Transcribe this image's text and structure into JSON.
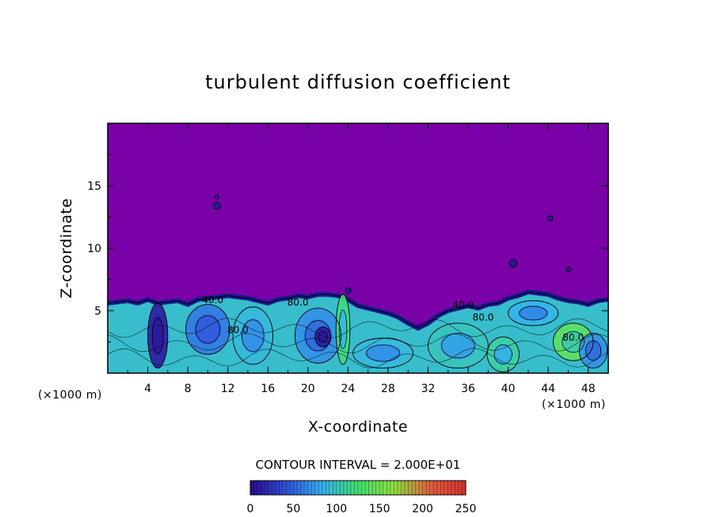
{
  "chart_data": {
    "type": "heatmap",
    "title": "turbulent diffusion coefficient",
    "xlabel": "X-coordinate",
    "ylabel": "Z-coordinate",
    "x_unit": "(×1000 m)",
    "x_unit_right": "(×1000 m)",
    "xlim": [
      0,
      50
    ],
    "ylim": [
      0,
      20
    ],
    "x_ticks": [
      4,
      8,
      12,
      16,
      20,
      24,
      28,
      32,
      36,
      40,
      44,
      48
    ],
    "y_ticks": [
      5,
      10,
      15
    ],
    "contour_interval_text": "CONTOUR INTERVAL = 2.000E+01",
    "colorbar": {
      "range": [
        0,
        250
      ],
      "ticks": [
        0,
        50,
        100,
        150,
        200,
        250
      ],
      "colors": [
        "#2a0a8c",
        "#3050d8",
        "#35b0f0",
        "#40e070",
        "#90e040",
        "#e06040",
        "#d83030"
      ]
    },
    "contour_labels": [
      {
        "text": "40.0",
        "x": 10.5,
        "z": 5.6
      },
      {
        "text": "80.0",
        "x": 13.0,
        "z": 3.2
      },
      {
        "text": "80.0",
        "x": 19.0,
        "z": 5.4
      },
      {
        "text": "80.0",
        "x": 37.5,
        "z": 4.2
      },
      {
        "text": "40.0",
        "x": 35.5,
        "z": 5.2
      },
      {
        "text": "80.0",
        "x": 46.5,
        "z": 2.6
      }
    ],
    "top_boundary": [
      [
        0,
        5.6
      ],
      [
        1,
        5.7
      ],
      [
        2,
        5.8
      ],
      [
        3,
        5.6
      ],
      [
        4,
        5.9
      ],
      [
        5,
        5.6
      ],
      [
        6,
        5.7
      ],
      [
        7,
        5.8
      ],
      [
        8,
        5.5
      ],
      [
        9,
        5.9
      ],
      [
        10,
        6.0
      ],
      [
        11,
        6.1
      ],
      [
        12,
        6.2
      ],
      [
        13,
        6.1
      ],
      [
        14,
        6.0
      ],
      [
        15,
        5.8
      ],
      [
        16,
        5.6
      ],
      [
        17,
        5.9
      ],
      [
        18,
        6.0
      ],
      [
        19,
        6.2
      ],
      [
        20,
        6.1
      ],
      [
        21,
        6.3
      ],
      [
        22,
        6.3
      ],
      [
        23,
        6.2
      ],
      [
        24,
        5.9
      ],
      [
        25,
        5.4
      ],
      [
        26,
        5.2
      ],
      [
        27,
        5.0
      ],
      [
        28,
        4.8
      ],
      [
        29,
        4.5
      ],
      [
        30,
        4.0
      ],
      [
        30.5,
        3.8
      ],
      [
        31,
        3.6
      ],
      [
        32,
        4.0
      ],
      [
        33,
        4.6
      ],
      [
        34,
        5.0
      ],
      [
        35,
        5.2
      ],
      [
        36,
        5.4
      ],
      [
        37,
        5.2
      ],
      [
        38,
        5.5
      ],
      [
        39,
        5.6
      ],
      [
        40,
        6.0
      ],
      [
        41,
        6.2
      ],
      [
        42,
        6.5
      ],
      [
        43,
        6.4
      ],
      [
        44,
        6.3
      ],
      [
        45,
        6.0
      ],
      [
        46,
        5.8
      ],
      [
        47,
        5.7
      ],
      [
        48,
        5.5
      ],
      [
        49,
        5.8
      ],
      [
        50,
        5.9
      ]
    ],
    "eddies": [
      {
        "x": 5.0,
        "z": 3.0,
        "rx": 1.0,
        "rz": 2.6,
        "v": 10
      },
      {
        "x": 10.0,
        "z": 3.5,
        "rx": 2.2,
        "rz": 2.0,
        "v": 60
      },
      {
        "x": 14.5,
        "z": 3.0,
        "rx": 2.0,
        "rz": 2.3,
        "v": 90
      },
      {
        "x": 21.0,
        "z": 3.0,
        "rx": 2.3,
        "rz": 2.2,
        "v": 70
      },
      {
        "x": 21.5,
        "z": 2.9,
        "rx": 0.8,
        "rz": 0.8,
        "v": 10
      },
      {
        "x": 23.5,
        "z": 3.5,
        "rx": 0.7,
        "rz": 2.8,
        "v": 120
      },
      {
        "x": 27.5,
        "z": 1.6,
        "rx": 3.0,
        "rz": 1.2,
        "v": 90
      },
      {
        "x": 35.0,
        "z": 2.2,
        "rx": 3.0,
        "rz": 1.8,
        "v": 100
      },
      {
        "x": 39.5,
        "z": 1.5,
        "rx": 1.6,
        "rz": 1.4,
        "v": 110
      },
      {
        "x": 46.5,
        "z": 2.5,
        "rx": 2.0,
        "rz": 1.5,
        "v": 140
      },
      {
        "x": 48.5,
        "z": 1.8,
        "rx": 1.4,
        "rz": 1.4,
        "v": 70
      },
      {
        "x": 42.5,
        "z": 4.8,
        "rx": 2.5,
        "rz": 1.0,
        "v": 85
      }
    ],
    "upper_blobs": [
      {
        "x": 10.9,
        "z": 13.4,
        "r": 0.35,
        "v": 8
      },
      {
        "x": 10.9,
        "z": 14.1,
        "r": 0.2,
        "v": 12
      },
      {
        "x": 44.2,
        "z": 12.4,
        "r": 0.25,
        "v": 10
      },
      {
        "x": 40.5,
        "z": 8.8,
        "r": 0.4,
        "v": 6
      },
      {
        "x": 46.0,
        "z": 8.3,
        "r": 0.25,
        "v": 8
      },
      {
        "x": 24.0,
        "z": 6.6,
        "r": 0.3,
        "v": 6
      }
    ]
  }
}
